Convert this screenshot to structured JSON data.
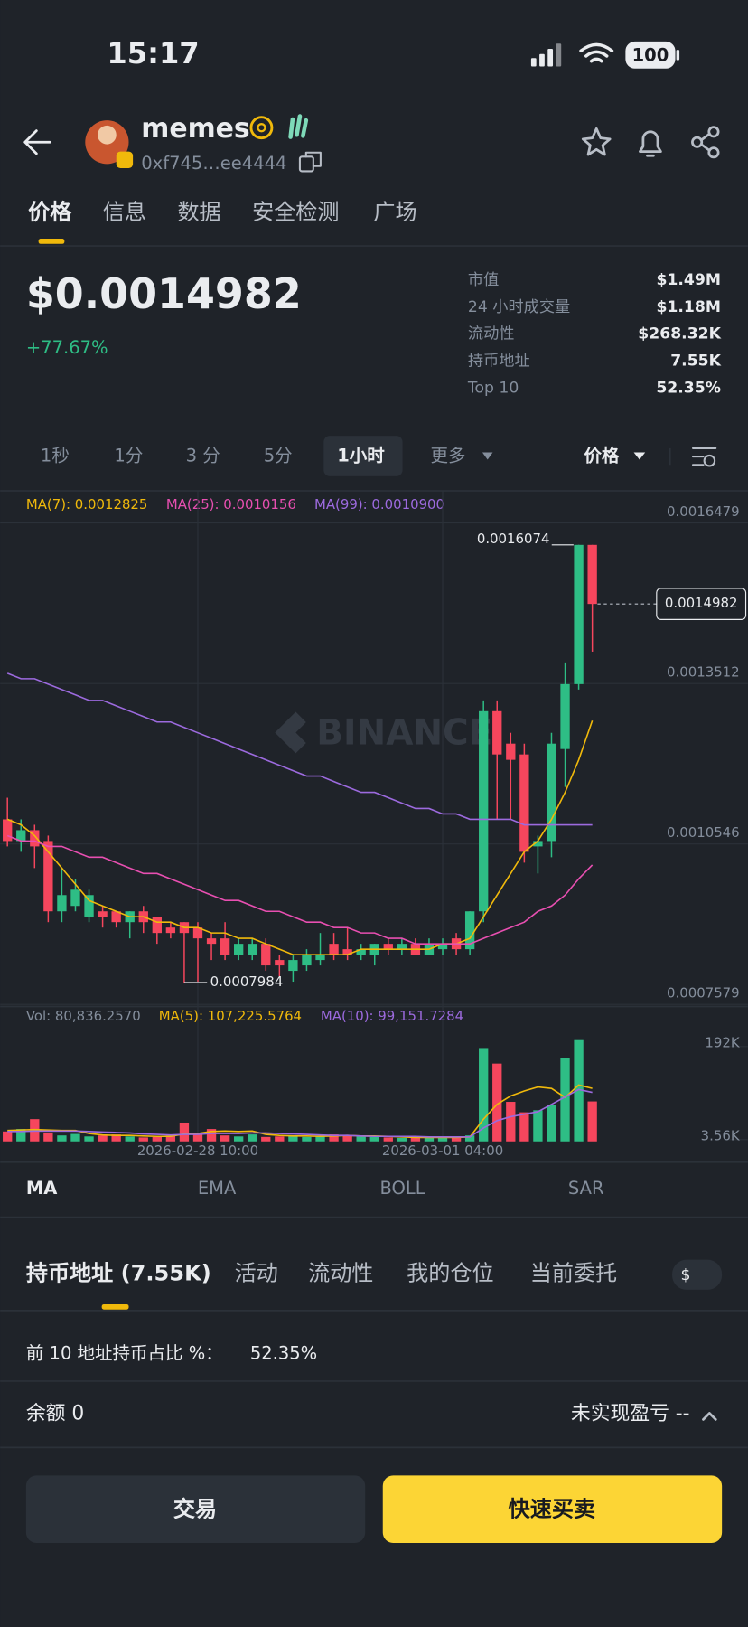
{
  "status_bar": {
    "time": "15:17",
    "battery": "100"
  },
  "header": {
    "name": "memes",
    "address": "0xf745…ee4444"
  },
  "tabs": [
    "价格",
    "信息",
    "数据",
    "安全检测",
    "广场"
  ],
  "price": {
    "value": "$0.0014982",
    "change": "+77.67%"
  },
  "stats": [
    {
      "label": "市值",
      "value": "$1.49M"
    },
    {
      "label": "24 小时成交量",
      "value": "$1.18M"
    },
    {
      "label": "流动性",
      "value": "$268.32K"
    },
    {
      "label": "持币地址",
      "value": "7.55K"
    },
    {
      "label": "Top 10",
      "value": "52.35%"
    }
  ],
  "intervals": [
    "1秒",
    "1分",
    "3 分",
    "5分",
    "1小时",
    "更多"
  ],
  "price_selector": "价格",
  "chart": {
    "type": "candlestick",
    "x": [
      null,
      null,
      null,
      null,
      null,
      null,
      null,
      null,
      null,
      null,
      null,
      null,
      null,
      null,
      "2026-02-28 10:00",
      null,
      null,
      null,
      null,
      null,
      null,
      null,
      null,
      null,
      null,
      null,
      null,
      null,
      null,
      null,
      null,
      null,
      "2026-03-01 04:00",
      null,
      null,
      null,
      null,
      null,
      null,
      null,
      null,
      null,
      null,
      null
    ],
    "candles": {
      "open": [
        0.0011,
        0.00106,
        0.00108,
        0.00106,
        0.00093,
        0.00094,
        0.00092,
        0.00093,
        0.00093,
        0.00091,
        0.00093,
        0.00092,
        0.0009,
        0.00091,
        0.0009,
        0.00088,
        0.00088,
        0.00085,
        0.00085,
        0.00087,
        0.00084,
        0.00082,
        0.00083,
        0.00084,
        0.00087,
        0.00086,
        0.00085,
        0.00085,
        0.00087,
        0.00086,
        0.00087,
        0.00085,
        0.00086,
        0.00088,
        0.00086,
        0.00093,
        0.0013,
        0.00124,
        0.00122,
        0.00105,
        0.00106,
        0.00123,
        0.00135,
        0.0016074
      ],
      "high": [
        0.00114,
        0.0011,
        0.00109,
        0.00107,
        0.00101,
        0.00099,
        0.00097,
        0.00094,
        0.00093,
        0.00093,
        0.00094,
        0.00092,
        0.00091,
        0.00091,
        0.00091,
        0.00089,
        0.00091,
        0.00088,
        0.00088,
        0.00088,
        0.00085,
        0.00085,
        0.00086,
        0.00089,
        0.00089,
        0.0009,
        0.00087,
        0.00087,
        0.00088,
        0.00088,
        0.00088,
        0.00088,
        0.00088,
        0.00089,
        0.00093,
        0.00132,
        0.00132,
        0.00126,
        0.00124,
        0.00107,
        0.00126,
        0.00139,
        0.0016074,
        0.0016074
      ],
      "low": [
        0.00105,
        0.00104,
        0.00101,
        0.00091,
        0.00091,
        0.00093,
        0.00091,
        0.0009,
        0.0009,
        0.00088,
        0.00089,
        0.00087,
        0.00088,
        0.0007984,
        0.0008,
        0.00084,
        0.00084,
        0.00084,
        0.00084,
        0.00082,
        0.00081,
        0.0008,
        0.00082,
        0.00083,
        0.00084,
        0.00084,
        0.00084,
        0.00083,
        0.00085,
        0.00085,
        0.00085,
        0.00085,
        0.00085,
        0.00085,
        0.00085,
        0.00091,
        0.0011,
        0.0011,
        0.00102,
        0.001,
        0.00103,
        0.00116,
        0.00134,
        0.00141
      ],
      "close": [
        0.00106,
        0.00108,
        0.00105,
        0.00093,
        0.00096,
        0.00097,
        0.00096,
        0.00092,
        0.00091,
        0.00093,
        0.00091,
        0.00089,
        0.00089,
        0.00089,
        0.00088,
        0.00087,
        0.00085,
        0.00087,
        0.00087,
        0.00083,
        0.00083,
        0.00084,
        0.00085,
        0.00085,
        0.00085,
        0.00085,
        0.00086,
        0.00087,
        0.00086,
        0.00087,
        0.00085,
        0.00087,
        0.00087,
        0.00086,
        0.00093,
        0.0013,
        0.00122,
        0.00121,
        0.00104,
        0.00106,
        0.00124,
        0.00135,
        0.0016074,
        0.0014982
      ]
    },
    "up_color": "#2ebd85",
    "down_color": "#f6465d",
    "ylim": [
      0.0007579,
      0.0016479
    ],
    "yticks": [
      0.0016479,
      0.0013512,
      0.0010546,
      0.0007579
    ],
    "grid": true,
    "ma": [
      {
        "name": "MA(7): 0.0012825",
        "color": "#f0b90b",
        "values": [
          0.0011,
          0.00109,
          0.00107,
          0.00104,
          0.00101,
          0.00098,
          0.00095,
          0.00094,
          0.00093,
          0.00092,
          0.00092,
          0.00091,
          0.00091,
          0.0009,
          0.0009,
          0.00089,
          0.00089,
          0.00088,
          0.00088,
          0.00087,
          0.00086,
          0.00085,
          0.00085,
          0.00085,
          0.00085,
          0.00085,
          0.00086,
          0.00086,
          0.00086,
          0.00086,
          0.00086,
          0.00086,
          0.00087,
          0.00087,
          0.00088,
          0.00092,
          0.00096,
          0.001,
          0.00104,
          0.00106,
          0.0011,
          0.00115,
          0.00121,
          0.0012825
        ]
      },
      {
        "name": "MA(25): 0.0010156",
        "color": "#e84fb1",
        "values": [
          0.00107,
          0.00106,
          0.00106,
          0.00105,
          0.00105,
          0.00104,
          0.00103,
          0.00103,
          0.00102,
          0.00101,
          0.001,
          0.001,
          0.00099,
          0.00098,
          0.00097,
          0.00096,
          0.00095,
          0.00095,
          0.00094,
          0.00093,
          0.00093,
          0.00092,
          0.00091,
          0.00091,
          0.0009,
          0.0009,
          0.00089,
          0.00089,
          0.00088,
          0.00088,
          0.00087,
          0.00087,
          0.00087,
          0.00087,
          0.00087,
          0.00088,
          0.00089,
          0.0009,
          0.00091,
          0.00093,
          0.00094,
          0.00096,
          0.00099,
          0.0010156
        ]
      },
      {
        "name": "MA(99): 0.0010900",
        "color": "#9c6ade",
        "values": [
          0.00137,
          0.00136,
          0.00136,
          0.00135,
          0.00134,
          0.00133,
          0.00132,
          0.00132,
          0.00131,
          0.0013,
          0.00129,
          0.00128,
          0.00128,
          0.00127,
          0.00126,
          0.00125,
          0.00124,
          0.00123,
          0.00122,
          0.00121,
          0.0012,
          0.00119,
          0.00118,
          0.00118,
          0.00117,
          0.00116,
          0.00115,
          0.00115,
          0.00114,
          0.00113,
          0.00112,
          0.00112,
          0.00111,
          0.00111,
          0.0011,
          0.0011,
          0.0011,
          0.0011,
          0.00109,
          0.00109,
          0.00109,
          0.00109,
          0.00109,
          0.00109
        ]
      }
    ],
    "volume": {
      "label": "Vol: 80,836.2570",
      "values": [
        20000,
        25000,
        45000,
        18000,
        12000,
        15000,
        10000,
        12000,
        14000,
        10000,
        8000,
        9000,
        12000,
        38000,
        14000,
        25000,
        12000,
        10000,
        14000,
        9000,
        10000,
        12000,
        9000,
        11000,
        14000,
        12000,
        10000,
        9000,
        8000,
        7000,
        8000,
        7000,
        9000,
        10000,
        12000,
        189000,
        157500,
        80000,
        58800,
        63000,
        73500,
        168000,
        205000,
        80836.257
      ],
      "ylim": [
        0,
        210000
      ],
      "yticks": [
        {
          "value": 192000,
          "label": "192K"
        },
        {
          "value": 3560,
          "label": "3.56K"
        }
      ],
      "ma": [
        {
          "name": "MA(5): 107,225.5764",
          "color": "#f0b90b",
          "values": [
            22000,
            23000,
            24000,
            23000,
            22000,
            22000,
            16000,
            13000,
            12000,
            12000,
            11000,
            10000,
            10000,
            15000,
            16000,
            20000,
            21000,
            20000,
            21000,
            14000,
            12000,
            11000,
            11000,
            10000,
            11000,
            12000,
            11000,
            11000,
            10000,
            9000,
            8000,
            8000,
            8000,
            8000,
            9000,
            45000,
            75000,
            92000,
            102000,
            110000,
            107000,
            89000,
            114000,
            107225.5764
          ]
        },
        {
          "name": "MA(10): 99,151.7284",
          "color": "#9c6ade",
          "values": [
            20000,
            20000,
            21000,
            21000,
            21000,
            21000,
            20000,
            19000,
            18000,
            17000,
            15000,
            14000,
            13000,
            14000,
            14000,
            16000,
            16000,
            16000,
            17000,
            17000,
            16000,
            15000,
            14000,
            13000,
            12000,
            12000,
            11000,
            10000,
            10000,
            10000,
            10000,
            9000,
            9000,
            9000,
            9000,
            27000,
            42000,
            50000,
            55000,
            60000,
            75000,
            90000,
            105000,
            99151.7284
          ]
        }
      ]
    }
  },
  "indicators": [
    "MA",
    "EMA",
    "BOLL",
    "SAR"
  ],
  "bottom_tabs": [
    "持币地址 (7.55K)",
    "活动",
    "流动性",
    "我的仓位",
    "当前委托"
  ],
  "currency": "$",
  "holders_share": {
    "label": "前 10 地址持币占比 %：",
    "value": "52.35%"
  },
  "balance": "余额 0",
  "pnl": "未实现盈亏 --",
  "buttons": [
    "交易",
    "快速买卖"
  ],
  "watermark": "BINANCE"
}
